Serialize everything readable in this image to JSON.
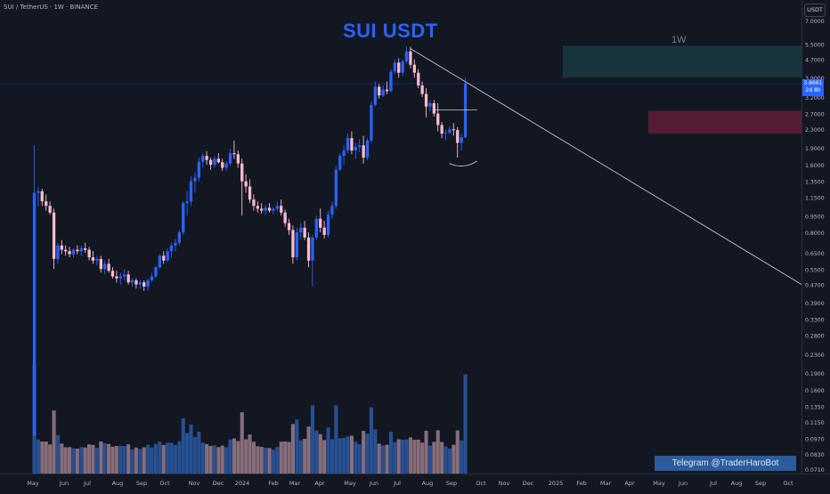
{
  "header": {
    "symbol_label": "SUI / TetherUS · 1W · BINANCE",
    "title": "SUI USDT",
    "timeframe": "1W",
    "currency": "USDT"
  },
  "overlay": {
    "telegram_text": "Telegram @TraderHaroBot",
    "price_tag": {
      "price": "3.6661",
      "countdown": "2d 8h"
    }
  },
  "colors": {
    "background": "#131722",
    "bull_candle": "#2962ff",
    "bear_candle": "#f8bbd0",
    "bull_volume": "#2b5aa8",
    "bear_volume": "#9c7c8a",
    "resistance_zone": "#1e4f55",
    "support_zone": "#6e1f3d",
    "trendline": "#c7cad3"
  },
  "chart_data": {
    "type": "candlestick",
    "interval": "1W",
    "y_scale": "log",
    "y_tick_labels": [
      "7.0000",
      "5.5000",
      "4.7000",
      "3.9000",
      "3.2000",
      "2.7000",
      "2.3000",
      "1.9000",
      "1.6000",
      "1.3500",
      "1.1500",
      "0.9500",
      "0.8000",
      "0.6500",
      "0.5500",
      "0.4700",
      "0.3900",
      "0.3300",
      "0.2800",
      "0.2300",
      "0.1900",
      "0.1600",
      "0.1350",
      "0.1150",
      "0.0970",
      "0.0830",
      "0.0710"
    ],
    "x_tick_labels": [
      "May",
      "Jun",
      "Jul",
      "Aug",
      "Sep",
      "Oct",
      "Nov",
      "Dec",
      "2024",
      "Feb",
      "Mar",
      "Apr",
      "May",
      "Jun",
      "Jul",
      "Aug",
      "Sep",
      "Oct",
      "Nov",
      "Dec",
      "2025",
      "Feb",
      "Mar",
      "Apr",
      "May",
      "Jun",
      "Jul",
      "Aug",
      "Sep",
      "Oct"
    ],
    "current_price": 3.6661,
    "candles": [
      {
        "o": 0.1,
        "h": 1.95,
        "l": 0.1,
        "c": 1.2
      },
      {
        "o": 1.2,
        "h": 1.27,
        "l": 1.05,
        "c": 1.22
      },
      {
        "o": 1.22,
        "h": 1.25,
        "l": 1.05,
        "c": 1.1
      },
      {
        "o": 1.1,
        "h": 1.18,
        "l": 1.0,
        "c": 1.05
      },
      {
        "o": 1.05,
        "h": 1.1,
        "l": 0.96,
        "c": 0.98
      },
      {
        "o": 0.98,
        "h": 1.02,
        "l": 0.55,
        "c": 0.61
      },
      {
        "o": 0.61,
        "h": 0.72,
        "l": 0.58,
        "c": 0.7
      },
      {
        "o": 0.7,
        "h": 0.74,
        "l": 0.64,
        "c": 0.67
      },
      {
        "o": 0.67,
        "h": 0.7,
        "l": 0.63,
        "c": 0.66
      },
      {
        "o": 0.66,
        "h": 0.69,
        "l": 0.62,
        "c": 0.64
      },
      {
        "o": 0.64,
        "h": 0.68,
        "l": 0.62,
        "c": 0.67
      },
      {
        "o": 0.67,
        "h": 0.7,
        "l": 0.64,
        "c": 0.66
      },
      {
        "o": 0.66,
        "h": 0.7,
        "l": 0.63,
        "c": 0.68
      },
      {
        "o": 0.68,
        "h": 0.72,
        "l": 0.65,
        "c": 0.67
      },
      {
        "o": 0.67,
        "h": 0.69,
        "l": 0.6,
        "c": 0.62
      },
      {
        "o": 0.62,
        "h": 0.66,
        "l": 0.58,
        "c": 0.6
      },
      {
        "o": 0.6,
        "h": 0.63,
        "l": 0.57,
        "c": 0.61
      },
      {
        "o": 0.61,
        "h": 0.63,
        "l": 0.53,
        "c": 0.55
      },
      {
        "o": 0.55,
        "h": 0.6,
        "l": 0.52,
        "c": 0.58
      },
      {
        "o": 0.58,
        "h": 0.61,
        "l": 0.53,
        "c": 0.54
      },
      {
        "o": 0.54,
        "h": 0.56,
        "l": 0.5,
        "c": 0.51
      },
      {
        "o": 0.51,
        "h": 0.54,
        "l": 0.48,
        "c": 0.5
      },
      {
        "o": 0.5,
        "h": 0.53,
        "l": 0.47,
        "c": 0.51
      },
      {
        "o": 0.51,
        "h": 0.55,
        "l": 0.49,
        "c": 0.52
      },
      {
        "o": 0.52,
        "h": 0.54,
        "l": 0.47,
        "c": 0.48
      },
      {
        "o": 0.48,
        "h": 0.5,
        "l": 0.46,
        "c": 0.49
      },
      {
        "o": 0.49,
        "h": 0.5,
        "l": 0.45,
        "c": 0.47
      },
      {
        "o": 0.47,
        "h": 0.49,
        "l": 0.45,
        "c": 0.48
      },
      {
        "o": 0.48,
        "h": 0.49,
        "l": 0.44,
        "c": 0.46
      },
      {
        "o": 0.46,
        "h": 0.5,
        "l": 0.44,
        "c": 0.49
      },
      {
        "o": 0.49,
        "h": 0.53,
        "l": 0.48,
        "c": 0.51
      },
      {
        "o": 0.51,
        "h": 0.57,
        "l": 0.5,
        "c": 0.56
      },
      {
        "o": 0.56,
        "h": 0.64,
        "l": 0.55,
        "c": 0.63
      },
      {
        "o": 0.63,
        "h": 0.66,
        "l": 0.58,
        "c": 0.6
      },
      {
        "o": 0.6,
        "h": 0.68,
        "l": 0.59,
        "c": 0.66
      },
      {
        "o": 0.66,
        "h": 0.72,
        "l": 0.62,
        "c": 0.7
      },
      {
        "o": 0.7,
        "h": 0.75,
        "l": 0.66,
        "c": 0.72
      },
      {
        "o": 0.72,
        "h": 0.82,
        "l": 0.7,
        "c": 0.8
      },
      {
        "o": 0.8,
        "h": 1.1,
        "l": 0.78,
        "c": 1.08
      },
      {
        "o": 1.08,
        "h": 1.22,
        "l": 0.95,
        "c": 1.1
      },
      {
        "o": 1.1,
        "h": 1.42,
        "l": 1.05,
        "c": 1.35
      },
      {
        "o": 1.35,
        "h": 1.48,
        "l": 1.2,
        "c": 1.4
      },
      {
        "o": 1.4,
        "h": 1.72,
        "l": 1.35,
        "c": 1.65
      },
      {
        "o": 1.65,
        "h": 1.8,
        "l": 1.55,
        "c": 1.75
      },
      {
        "o": 1.75,
        "h": 1.84,
        "l": 1.6,
        "c": 1.68
      },
      {
        "o": 1.68,
        "h": 1.72,
        "l": 1.52,
        "c": 1.6
      },
      {
        "o": 1.6,
        "h": 1.75,
        "l": 1.55,
        "c": 1.7
      },
      {
        "o": 1.7,
        "h": 1.8,
        "l": 1.62,
        "c": 1.64
      },
      {
        "o": 1.64,
        "h": 1.7,
        "l": 1.5,
        "c": 1.55
      },
      {
        "o": 1.55,
        "h": 1.66,
        "l": 1.5,
        "c": 1.62
      },
      {
        "o": 1.62,
        "h": 1.88,
        "l": 1.58,
        "c": 1.8
      },
      {
        "o": 1.8,
        "h": 2.05,
        "l": 1.7,
        "c": 1.78
      },
      {
        "o": 1.78,
        "h": 1.85,
        "l": 1.55,
        "c": 1.62
      },
      {
        "o": 1.62,
        "h": 1.7,
        "l": 0.95,
        "c": 1.35
      },
      {
        "o": 1.35,
        "h": 1.45,
        "l": 1.2,
        "c": 1.28
      },
      {
        "o": 1.28,
        "h": 1.38,
        "l": 1.08,
        "c": 1.12
      },
      {
        "o": 1.12,
        "h": 1.18,
        "l": 1.0,
        "c": 1.05
      },
      {
        "o": 1.05,
        "h": 1.1,
        "l": 0.98,
        "c": 1.02
      },
      {
        "o": 1.02,
        "h": 1.08,
        "l": 0.97,
        "c": 1.0
      },
      {
        "o": 1.0,
        "h": 1.06,
        "l": 0.96,
        "c": 1.03
      },
      {
        "o": 1.03,
        "h": 1.08,
        "l": 0.98,
        "c": 1.0
      },
      {
        "o": 1.0,
        "h": 1.04,
        "l": 0.96,
        "c": 1.02
      },
      {
        "o": 1.02,
        "h": 1.1,
        "l": 0.99,
        "c": 1.05
      },
      {
        "o": 1.05,
        "h": 1.12,
        "l": 0.95,
        "c": 0.98
      },
      {
        "o": 0.98,
        "h": 1.01,
        "l": 0.85,
        "c": 0.88
      },
      {
        "o": 0.88,
        "h": 0.92,
        "l": 0.78,
        "c": 0.82
      },
      {
        "o": 0.82,
        "h": 0.86,
        "l": 0.58,
        "c": 0.62
      },
      {
        "o": 0.62,
        "h": 0.84,
        "l": 0.6,
        "c": 0.8
      },
      {
        "o": 0.8,
        "h": 0.88,
        "l": 0.74,
        "c": 0.84
      },
      {
        "o": 0.84,
        "h": 0.9,
        "l": 0.74,
        "c": 0.76
      },
      {
        "o": 0.76,
        "h": 0.8,
        "l": 0.56,
        "c": 0.6
      },
      {
        "o": 0.6,
        "h": 0.78,
        "l": 0.46,
        "c": 0.76
      },
      {
        "o": 0.76,
        "h": 0.95,
        "l": 0.74,
        "c": 0.92
      },
      {
        "o": 0.92,
        "h": 1.02,
        "l": 0.8,
        "c": 0.84
      },
      {
        "o": 0.84,
        "h": 0.9,
        "l": 0.75,
        "c": 0.78
      },
      {
        "o": 0.78,
        "h": 1.0,
        "l": 0.76,
        "c": 0.96
      },
      {
        "o": 0.96,
        "h": 1.1,
        "l": 0.92,
        "c": 1.05
      },
      {
        "o": 1.05,
        "h": 1.58,
        "l": 1.02,
        "c": 1.52
      },
      {
        "o": 1.52,
        "h": 1.8,
        "l": 1.5,
        "c": 1.75
      },
      {
        "o": 1.75,
        "h": 1.95,
        "l": 1.6,
        "c": 1.85
      },
      {
        "o": 1.85,
        "h": 2.2,
        "l": 1.8,
        "c": 2.1
      },
      {
        "o": 2.1,
        "h": 2.25,
        "l": 1.78,
        "c": 1.85
      },
      {
        "o": 1.85,
        "h": 2.0,
        "l": 1.7,
        "c": 1.92
      },
      {
        "o": 1.92,
        "h": 2.08,
        "l": 1.82,
        "c": 1.95
      },
      {
        "o": 1.95,
        "h": 2.15,
        "l": 1.62,
        "c": 1.72
      },
      {
        "o": 1.72,
        "h": 2.1,
        "l": 1.68,
        "c": 2.05
      },
      {
        "o": 2.05,
        "h": 3.05,
        "l": 2.0,
        "c": 2.95
      },
      {
        "o": 2.95,
        "h": 3.75,
        "l": 2.9,
        "c": 3.55
      },
      {
        "o": 3.55,
        "h": 3.65,
        "l": 3.15,
        "c": 3.25
      },
      {
        "o": 3.25,
        "h": 3.6,
        "l": 3.2,
        "c": 3.45
      },
      {
        "o": 3.45,
        "h": 3.75,
        "l": 3.3,
        "c": 3.4
      },
      {
        "o": 3.4,
        "h": 4.25,
        "l": 3.35,
        "c": 4.15
      },
      {
        "o": 4.15,
        "h": 4.7,
        "l": 4.05,
        "c": 4.55
      },
      {
        "o": 4.55,
        "h": 4.75,
        "l": 3.9,
        "c": 4.1
      },
      {
        "o": 4.1,
        "h": 4.7,
        "l": 3.95,
        "c": 4.6
      },
      {
        "o": 4.6,
        "h": 5.35,
        "l": 4.5,
        "c": 5.1
      },
      {
        "o": 5.1,
        "h": 5.35,
        "l": 4.3,
        "c": 4.45
      },
      {
        "o": 4.45,
        "h": 4.7,
        "l": 3.9,
        "c": 4.1
      },
      {
        "o": 4.1,
        "h": 4.25,
        "l": 3.5,
        "c": 3.6
      },
      {
        "o": 3.6,
        "h": 3.75,
        "l": 3.2,
        "c": 3.3
      },
      {
        "o": 3.3,
        "h": 3.5,
        "l": 2.6,
        "c": 2.9
      },
      {
        "o": 2.9,
        "h": 3.1,
        "l": 2.75,
        "c": 3.0
      },
      {
        "o": 3.0,
        "h": 3.1,
        "l": 2.62,
        "c": 2.7
      },
      {
        "o": 2.7,
        "h": 3.0,
        "l": 2.25,
        "c": 2.4
      },
      {
        "o": 2.4,
        "h": 2.48,
        "l": 2.1,
        "c": 2.2
      },
      {
        "o": 2.2,
        "h": 2.3,
        "l": 2.05,
        "c": 2.22
      },
      {
        "o": 2.22,
        "h": 2.38,
        "l": 2.18,
        "c": 2.3
      },
      {
        "o": 2.3,
        "h": 2.45,
        "l": 2.15,
        "c": 2.28
      },
      {
        "o": 2.28,
        "h": 2.35,
        "l": 1.72,
        "c": 2.0
      },
      {
        "o": 2.0,
        "h": 2.2,
        "l": 1.85,
        "c": 2.12
      },
      {
        "o": 2.12,
        "h": 3.9,
        "l": 2.1,
        "c": 3.67
      }
    ]
  }
}
